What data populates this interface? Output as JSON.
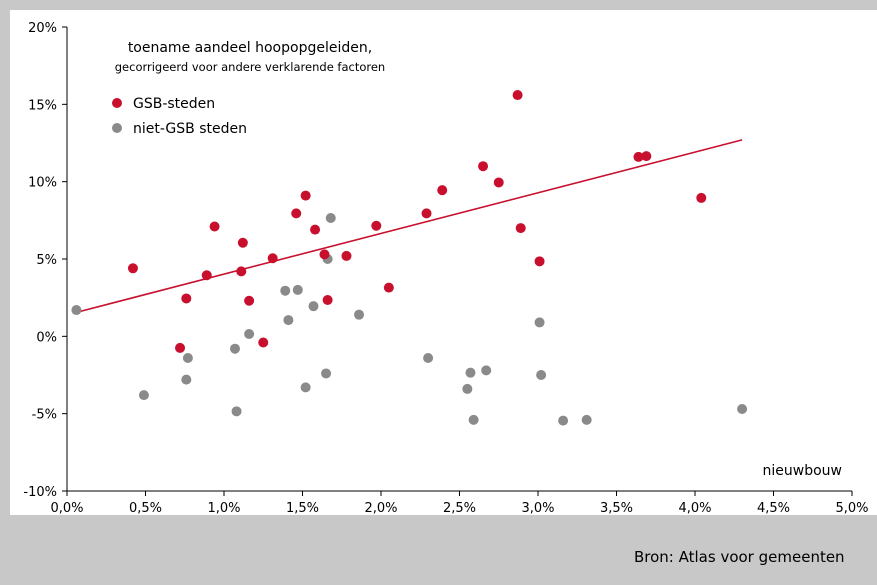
{
  "source_text": "Bron: Atlas voor gemeenten",
  "chart_data": {
    "type": "scatter",
    "title": "toename aandeel hoopopgeleiden,",
    "subtitle": "gecorrigeerd voor andere verklarende factoren",
    "xlabel": "nieuwbouw",
    "ylabel": "",
    "xlim": [
      0,
      5
    ],
    "ylim": [
      -10,
      20
    ],
    "x_ticks": [
      "0,0%",
      "0,5%",
      "1,0%",
      "1,5%",
      "2,0%",
      "2,5%",
      "3,0%",
      "3,5%",
      "4,0%",
      "4,5%",
      "5,0%"
    ],
    "y_ticks": [
      "-10%",
      "-5%",
      "0%",
      "5%",
      "10%",
      "15%",
      "20%"
    ],
    "legend_position": "top-left",
    "grid": false,
    "series": [
      {
        "name": "GSB-steden",
        "color": "#c8102e",
        "points": [
          [
            0.42,
            4.4
          ],
          [
            0.72,
            -0.75
          ],
          [
            0.76,
            2.45
          ],
          [
            0.89,
            3.95
          ],
          [
            0.94,
            7.1
          ],
          [
            1.11,
            4.2
          ],
          [
            1.12,
            6.05
          ],
          [
            1.16,
            2.3
          ],
          [
            1.25,
            -0.4
          ],
          [
            1.31,
            5.05
          ],
          [
            1.46,
            7.95
          ],
          [
            1.52,
            9.1
          ],
          [
            1.58,
            6.9
          ],
          [
            1.64,
            5.3
          ],
          [
            1.66,
            2.35
          ],
          [
            1.78,
            5.2
          ],
          [
            1.97,
            7.15
          ],
          [
            2.05,
            3.15
          ],
          [
            2.29,
            7.95
          ],
          [
            2.39,
            9.45
          ],
          [
            2.65,
            11.0
          ],
          [
            2.75,
            9.95
          ],
          [
            2.87,
            15.6
          ],
          [
            2.89,
            7.0
          ],
          [
            3.01,
            4.85
          ],
          [
            3.64,
            11.6
          ],
          [
            3.69,
            11.65
          ],
          [
            4.04,
            8.95
          ]
        ]
      },
      {
        "name": "niet-GSB steden",
        "color": "#8a8a8a",
        "points": [
          [
            0.06,
            1.7
          ],
          [
            0.49,
            -3.8
          ],
          [
            0.76,
            -2.8
          ],
          [
            0.77,
            -1.4
          ],
          [
            1.07,
            -0.8
          ],
          [
            1.08,
            -4.85
          ],
          [
            1.16,
            0.15
          ],
          [
            1.39,
            2.95
          ],
          [
            1.41,
            1.05
          ],
          [
            1.47,
            3.0
          ],
          [
            1.52,
            -3.3
          ],
          [
            1.57,
            1.95
          ],
          [
            1.65,
            -2.4
          ],
          [
            1.66,
            5.0
          ],
          [
            1.68,
            7.65
          ],
          [
            1.86,
            1.4
          ],
          [
            2.3,
            -1.4
          ],
          [
            2.55,
            -3.4
          ],
          [
            2.57,
            -2.35
          ],
          [
            2.59,
            -5.4
          ],
          [
            2.67,
            -2.2
          ],
          [
            3.01,
            0.9
          ],
          [
            3.02,
            -2.5
          ],
          [
            3.16,
            -5.45
          ],
          [
            3.31,
            -5.4
          ],
          [
            4.3,
            -4.7
          ]
        ]
      }
    ],
    "trendline": {
      "color": "#c8102e",
      "x": [
        0.06,
        4.3
      ],
      "y": [
        1.55,
        12.7
      ]
    }
  }
}
